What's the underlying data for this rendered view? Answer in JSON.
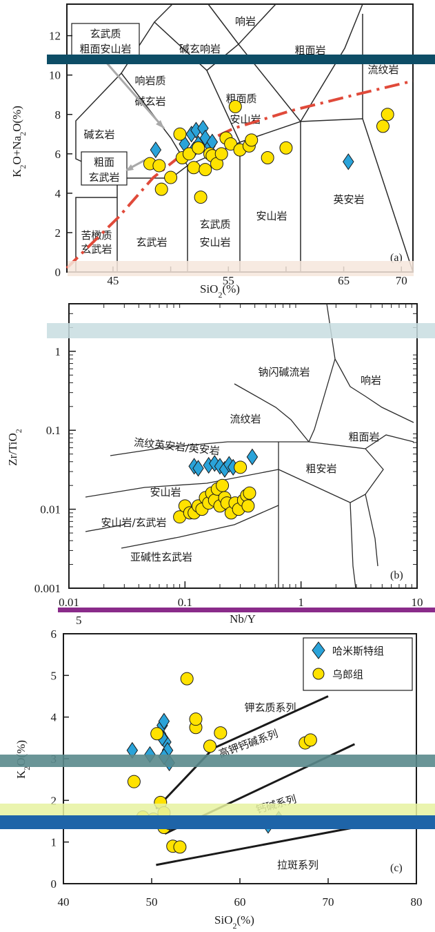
{
  "colors": {
    "diamond": "#2aa3d9",
    "circle": "#ffe200",
    "outline": "#1a1a1a",
    "trend": "#e04a3a",
    "arrow": "#a9a9a9"
  },
  "legend": {
    "hamisite": "哈米斯特组",
    "wulang": "乌郎组"
  },
  "chart_data": [
    {
      "type": "scatter",
      "panel": "(a)",
      "xlabel": "SiO2(%)",
      "ylabel": "K2O+Na2O(%)",
      "xlim": [
        41,
        71
      ],
      "ylim": [
        0,
        13.6
      ],
      "xticks": [
        45,
        50,
        55,
        60,
        65,
        70
      ],
      "xtick_labels": [
        "45",
        "",
        "55",
        "",
        "65",
        "70"
      ],
      "yticks": [
        0,
        2,
        4,
        6,
        8,
        10,
        12
      ],
      "fields": [
        "响岩",
        "碱玄响岩",
        "粗面岩",
        "流纹岩",
        "响岩质",
        "碱玄岩",
        "粗面质",
        "安山岩",
        "碱玄岩",
        "英安岩",
        "苦橄质",
        "玄武岩",
        "玄武岩",
        "玄武质",
        "安山岩",
        "安山岩"
      ],
      "callouts": [
        {
          "lines": [
            "玄武质",
            "粗面安山岩"
          ]
        },
        {
          "lines": [
            "粗面",
            "玄武岩"
          ]
        }
      ],
      "series": [
        {
          "name": "哈米斯特组",
          "marker": "diamond",
          "x": [
            48.7,
            51.8,
            52.2,
            52.8,
            52.4,
            53.0,
            53.4,
            52.0,
            53.6,
            51.2,
            65.4
          ],
          "y": [
            6.2,
            7.0,
            7.2,
            7.3,
            6.5,
            6.8,
            6.4,
            6.2,
            6.6,
            6.5,
            5.6
          ]
        },
        {
          "name": "乌郎组",
          "marker": "circle",
          "x": [
            48.2,
            49.0,
            49.2,
            50.0,
            50.8,
            51.0,
            51.6,
            52.0,
            52.4,
            52.6,
            53.0,
            53.4,
            53.6,
            54.0,
            54.4,
            54.8,
            55.2,
            55.6,
            56.0,
            56.8,
            57.0,
            58.4,
            60.0,
            68.4,
            68.8
          ],
          "y": [
            5.5,
            5.4,
            4.2,
            4.8,
            7.0,
            5.8,
            6.0,
            5.3,
            6.3,
            3.8,
            5.2,
            6.0,
            5.9,
            5.5,
            6.0,
            6.8,
            6.5,
            8.4,
            6.2,
            6.4,
            6.7,
            5.8,
            6.3,
            7.4,
            8.0
          ]
        }
      ],
      "trend_line": {
        "x": [
          41,
          45.5,
          48.5,
          51.5,
          55.5,
          60.5,
          66,
          71
        ],
        "y": [
          0.2,
          2.8,
          4.8,
          6.2,
          7.3,
          8.2,
          9.0,
          9.7
        ]
      }
    },
    {
      "type": "scatter",
      "panel": "(b)",
      "xlabel": "Nb/Y",
      "ylabel": "Zr/TiO2",
      "xscale": "log",
      "yscale": "log",
      "xlim": [
        0.01,
        10
      ],
      "ylim": [
        0.001,
        4
      ],
      "xticks": [
        0.01,
        0.1,
        1,
        10
      ],
      "xtick_labels": [
        "0.01",
        "0.1",
        "1",
        "10"
      ],
      "yticks": [
        0.001,
        0.01,
        0.1,
        1
      ],
      "ytick_labels": [
        "0.001",
        "0.01",
        "0.1",
        "1"
      ],
      "fields": [
        "钠闪碱流岩",
        "响岩",
        "流纹岩",
        "粗面岩",
        "流纹英安岩/英安岩",
        "粗安岩",
        "安山岩",
        "安山岩/玄武岩",
        "亚碱性玄武岩"
      ],
      "series": [
        {
          "name": "哈米斯特组",
          "marker": "diamond",
          "x": [
            0.12,
            0.13,
            0.16,
            0.18,
            0.2,
            0.22,
            0.24,
            0.26,
            0.38
          ],
          "y": [
            0.035,
            0.033,
            0.036,
            0.038,
            0.035,
            0.032,
            0.037,
            0.034,
            0.046
          ]
        },
        {
          "name": "乌郎组",
          "marker": "circle",
          "x": [
            0.09,
            0.1,
            0.11,
            0.12,
            0.13,
            0.14,
            0.15,
            0.16,
            0.17,
            0.18,
            0.19,
            0.2,
            0.21,
            0.22,
            0.23,
            0.25,
            0.27,
            0.29,
            0.3,
            0.32,
            0.34,
            0.35,
            0.36
          ],
          "y": [
            0.008,
            0.011,
            0.009,
            0.009,
            0.011,
            0.01,
            0.014,
            0.012,
            0.016,
            0.013,
            0.018,
            0.011,
            0.02,
            0.014,
            0.012,
            0.009,
            0.012,
            0.01,
            0.034,
            0.013,
            0.015,
            0.011,
            0.016
          ]
        }
      ]
    },
    {
      "type": "scatter",
      "panel": "(c)",
      "xlabel": "SiO2(%)",
      "ylabel": "K2O(%)",
      "xlim": [
        40,
        80
      ],
      "ylim": [
        0,
        6
      ],
      "xticks": [
        40,
        50,
        60,
        70,
        80
      ],
      "yticks": [
        0,
        1,
        2,
        3,
        4,
        5,
        6
      ],
      "extra_tick_label": "5",
      "fields": [
        "钾玄质系列",
        "高钾钙碱系列",
        "钙碱系列",
        "拉斑系列"
      ],
      "series": [
        {
          "name": "哈米斯特组",
          "marker": "diamond",
          "x": [
            47.8,
            49.8,
            51.0,
            51.2,
            51.4,
            51.6,
            51.8,
            52.0,
            51.4,
            51.2,
            63.2,
            64.4
          ],
          "y": [
            3.2,
            3.1,
            3.6,
            3.8,
            3.9,
            3.4,
            3.2,
            2.9,
            3.05,
            3.5,
            1.4,
            1.55
          ]
        },
        {
          "name": "乌郎组",
          "marker": "circle",
          "x": [
            48.0,
            49.0,
            50.0,
            50.6,
            51.0,
            51.4,
            52.4,
            53.2,
            54.0,
            55.0,
            55.0,
            56.6,
            57.8,
            67.4,
            68.0,
            50.2,
            51.4,
            52.0
          ],
          "y": [
            2.45,
            1.6,
            1.5,
            3.6,
            1.95,
            1.35,
            0.9,
            0.88,
            4.92,
            3.75,
            3.95,
            3.3,
            3.62,
            3.38,
            3.45,
            1.55,
            1.7,
            1.45
          ]
        }
      ]
    }
  ]
}
